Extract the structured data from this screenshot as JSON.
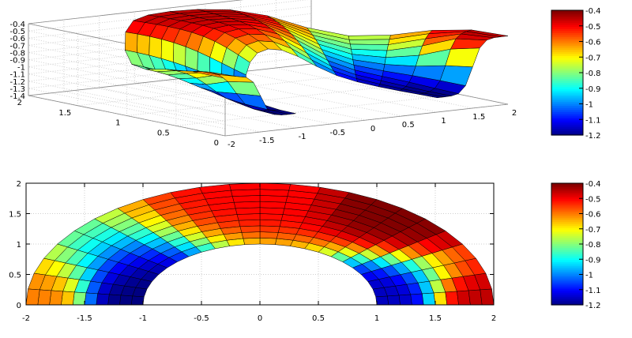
{
  "chart_data": [
    {
      "type": "surface3d",
      "title": "",
      "xlabel": "",
      "ylabel": "",
      "zlabel": "",
      "xlim": [
        -2,
        2
      ],
      "ylim": [
        0,
        2
      ],
      "zlim": [
        -1.4,
        -0.4
      ],
      "x_ticks": [
        "-2",
        "-1.5",
        "-1",
        "-0.5",
        "0",
        "0.5",
        "1",
        "1.5",
        "2"
      ],
      "y_ticks": [
        "0",
        "0.5",
        "1",
        "1.5",
        "2"
      ],
      "z_ticks": [
        "-0.4",
        "-0.5",
        "-0.6",
        "-0.7",
        "-0.8",
        "-0.9",
        "-1",
        "-1.1",
        "-1.2",
        "-1.3",
        "-1.4"
      ],
      "domain": {
        "r_min": 1,
        "r_max": 2,
        "theta_min_deg": 0,
        "theta_max_deg": 180,
        "r_steps": 10,
        "theta_steps": 18
      },
      "samples": [
        {
          "x": 1,
          "y": 0,
          "z": -1.2
        },
        {
          "x": 2,
          "y": 0,
          "z": -0.45
        },
        {
          "x": 0,
          "y": 2,
          "z": -0.45
        },
        {
          "x": -2,
          "y": 0,
          "z": -0.6
        },
        {
          "x": -1,
          "y": 0,
          "z": -1.2
        }
      ],
      "grid": true,
      "colorbar": {
        "min": -1.2,
        "max": -0.4,
        "ticks": [
          "-0.4",
          "-0.5",
          "-0.6",
          "-0.7",
          "-0.8",
          "-0.9",
          "-1",
          "-1.1",
          "-1.2"
        ]
      },
      "colormap": "jet"
    },
    {
      "type": "heatmap",
      "title": "",
      "xlabel": "",
      "ylabel": "",
      "xlim": [
        -2,
        2
      ],
      "ylim": [
        0,
        2
      ],
      "x_ticks": [
        "-2",
        "-1.5",
        "-1",
        "-0.5",
        "0",
        "0.5",
        "1",
        "1.5",
        "2"
      ],
      "y_ticks": [
        "0",
        "0.5",
        "1",
        "1.5",
        "2"
      ],
      "domain": {
        "r_min": 1,
        "r_max": 2,
        "theta_min_deg": 0,
        "theta_max_deg": 180,
        "r_steps": 10,
        "theta_steps": 24
      },
      "samples": [
        {
          "x": 1,
          "y": 0,
          "z": -1.15
        },
        {
          "x": 2,
          "y": 0,
          "z": -0.45
        },
        {
          "x": 1.2,
          "y": 1.6,
          "z": -0.4
        },
        {
          "x": 0,
          "y": 2,
          "z": -0.5
        },
        {
          "x": -2,
          "y": 0,
          "z": -0.6
        },
        {
          "x": -1,
          "y": 0,
          "z": -1.2
        }
      ],
      "grid": true,
      "colorbar": {
        "min": -1.2,
        "max": -0.4,
        "ticks": [
          "-0.4",
          "-0.5",
          "-0.6",
          "-0.7",
          "-0.8",
          "-0.9",
          "-1",
          "-1.1",
          "-1.2"
        ]
      },
      "colormap": "jet"
    }
  ]
}
